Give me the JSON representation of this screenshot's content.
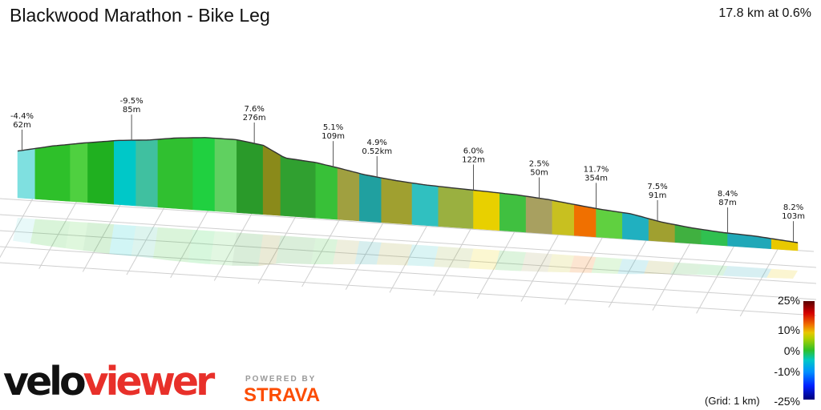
{
  "title": "Blackwood Marathon - Bike Leg",
  "summary": "17.8 km at 0.6%",
  "legend": {
    "ticks": [
      {
        "label": "25%",
        "value": 25
      },
      {
        "label": "10%",
        "value": 10
      },
      {
        "label": "0%",
        "value": 0
      },
      {
        "label": "-10%",
        "value": -10
      },
      {
        "label": "-25%",
        "value": -25
      }
    ],
    "grid_note": "(Grid: 1 km)"
  },
  "branding": {
    "logo_part1": "velo",
    "logo_part2": "viewer",
    "powered_by": "POWERED BY",
    "strava": "STRAVA"
  },
  "colors": {
    "logo_red": "#e8302a",
    "strava_orange": "#fc4c02"
  },
  "chart_data": {
    "type": "area",
    "title": "Blackwood Marathon - Bike Leg",
    "x_unit": "km",
    "total_distance_km": 17.8,
    "average_gradient_pct": 0.6,
    "grid_km": 1,
    "profile_points_note": "",
    "profile": [
      {
        "x": 0.0,
        "y": 62
      },
      {
        "x": 0.8,
        "y": 74
      },
      {
        "x": 1.5,
        "y": 82
      },
      {
        "x": 2.3,
        "y": 90
      },
      {
        "x": 3.0,
        "y": 94
      },
      {
        "x": 3.6,
        "y": 100
      },
      {
        "x": 4.3,
        "y": 104
      },
      {
        "x": 5.0,
        "y": 104
      },
      {
        "x": 5.6,
        "y": 98
      },
      {
        "x": 6.1,
        "y": 80
      },
      {
        "x": 6.8,
        "y": 76
      },
      {
        "x": 7.3,
        "y": 70
      },
      {
        "x": 7.9,
        "y": 62
      },
      {
        "x": 8.6,
        "y": 56
      },
      {
        "x": 9.3,
        "y": 52
      },
      {
        "x": 10.0,
        "y": 50
      },
      {
        "x": 10.7,
        "y": 48
      },
      {
        "x": 11.4,
        "y": 46
      },
      {
        "x": 12.1,
        "y": 42
      },
      {
        "x": 12.8,
        "y": 36
      },
      {
        "x": 13.3,
        "y": 32
      },
      {
        "x": 14.0,
        "y": 28
      },
      {
        "x": 14.7,
        "y": 18
      },
      {
        "x": 15.4,
        "y": 12
      },
      {
        "x": 16.1,
        "y": 8
      },
      {
        "x": 16.8,
        "y": 6
      },
      {
        "x": 17.8,
        "y": 0
      }
    ],
    "annotations": [
      {
        "grade": "-4.4%",
        "length": "62m",
        "x": 0.1
      },
      {
        "grade": "-9.5%",
        "length": "85m",
        "x": 2.6
      },
      {
        "grade": "7.6%",
        "length": "276m",
        "x": 5.4
      },
      {
        "grade": "5.1%",
        "length": "109m",
        "x": 7.2
      },
      {
        "grade": "4.9%",
        "length": "0.52km",
        "x": 8.2
      },
      {
        "grade": "6.0%",
        "length": "122m",
        "x": 10.4
      },
      {
        "grade": "2.5%",
        "length": "50m",
        "x": 11.9
      },
      {
        "grade": "11.7%",
        "length": "354m",
        "x": 13.2
      },
      {
        "grade": "7.5%",
        "length": "91m",
        "x": 14.6
      },
      {
        "grade": "8.4%",
        "length": "87m",
        "x": 16.2
      },
      {
        "grade": "8.2%",
        "length": "103m",
        "x": 17.7
      }
    ],
    "segments": [
      {
        "x0": 0.0,
        "x1": 0.4,
        "color": "#7fe0e0"
      },
      {
        "x0": 0.4,
        "x1": 1.2,
        "color": "#2ec02a"
      },
      {
        "x0": 1.2,
        "x1": 1.6,
        "color": "#4fd040"
      },
      {
        "x0": 1.6,
        "x1": 2.2,
        "color": "#20b020"
      },
      {
        "x0": 2.2,
        "x1": 2.7,
        "color": "#00c8c8"
      },
      {
        "x0": 2.7,
        "x1": 3.2,
        "color": "#40c0a0"
      },
      {
        "x0": 3.2,
        "x1": 4.0,
        "color": "#30c030"
      },
      {
        "x0": 4.0,
        "x1": 4.5,
        "color": "#20d040"
      },
      {
        "x0": 4.5,
        "x1": 5.0,
        "color": "#60d060"
      },
      {
        "x0": 5.0,
        "x1": 5.6,
        "color": "#2a9a2a"
      },
      {
        "x0": 5.6,
        "x1": 6.0,
        "color": "#8a8a1a"
      },
      {
        "x0": 6.0,
        "x1": 6.8,
        "color": "#30a030"
      },
      {
        "x0": 6.8,
        "x1": 7.3,
        "color": "#38c038"
      },
      {
        "x0": 7.3,
        "x1": 7.8,
        "color": "#a0a040"
      },
      {
        "x0": 7.8,
        "x1": 8.3,
        "color": "#20a0a0"
      },
      {
        "x0": 8.3,
        "x1": 9.0,
        "color": "#a0a030"
      },
      {
        "x0": 9.0,
        "x1": 9.6,
        "color": "#30c0c0"
      },
      {
        "x0": 9.6,
        "x1": 10.4,
        "color": "#9ab040"
      },
      {
        "x0": 10.4,
        "x1": 11.0,
        "color": "#e8d000"
      },
      {
        "x0": 11.0,
        "x1": 11.6,
        "color": "#40c040"
      },
      {
        "x0": 11.6,
        "x1": 12.2,
        "color": "#a8a060"
      },
      {
        "x0": 12.2,
        "x1": 12.7,
        "color": "#c8c020"
      },
      {
        "x0": 12.7,
        "x1": 13.2,
        "color": "#f07000"
      },
      {
        "x0": 13.2,
        "x1": 13.8,
        "color": "#60d040"
      },
      {
        "x0": 13.8,
        "x1": 14.4,
        "color": "#20b0c0"
      },
      {
        "x0": 14.4,
        "x1": 15.0,
        "color": "#a0a030"
      },
      {
        "x0": 15.0,
        "x1": 15.6,
        "color": "#40b040"
      },
      {
        "x0": 15.6,
        "x1": 16.2,
        "color": "#30c050"
      },
      {
        "x0": 16.2,
        "x1": 17.2,
        "color": "#20a8b8"
      },
      {
        "x0": 17.2,
        "x1": 17.8,
        "color": "#e8c800"
      }
    ]
  }
}
